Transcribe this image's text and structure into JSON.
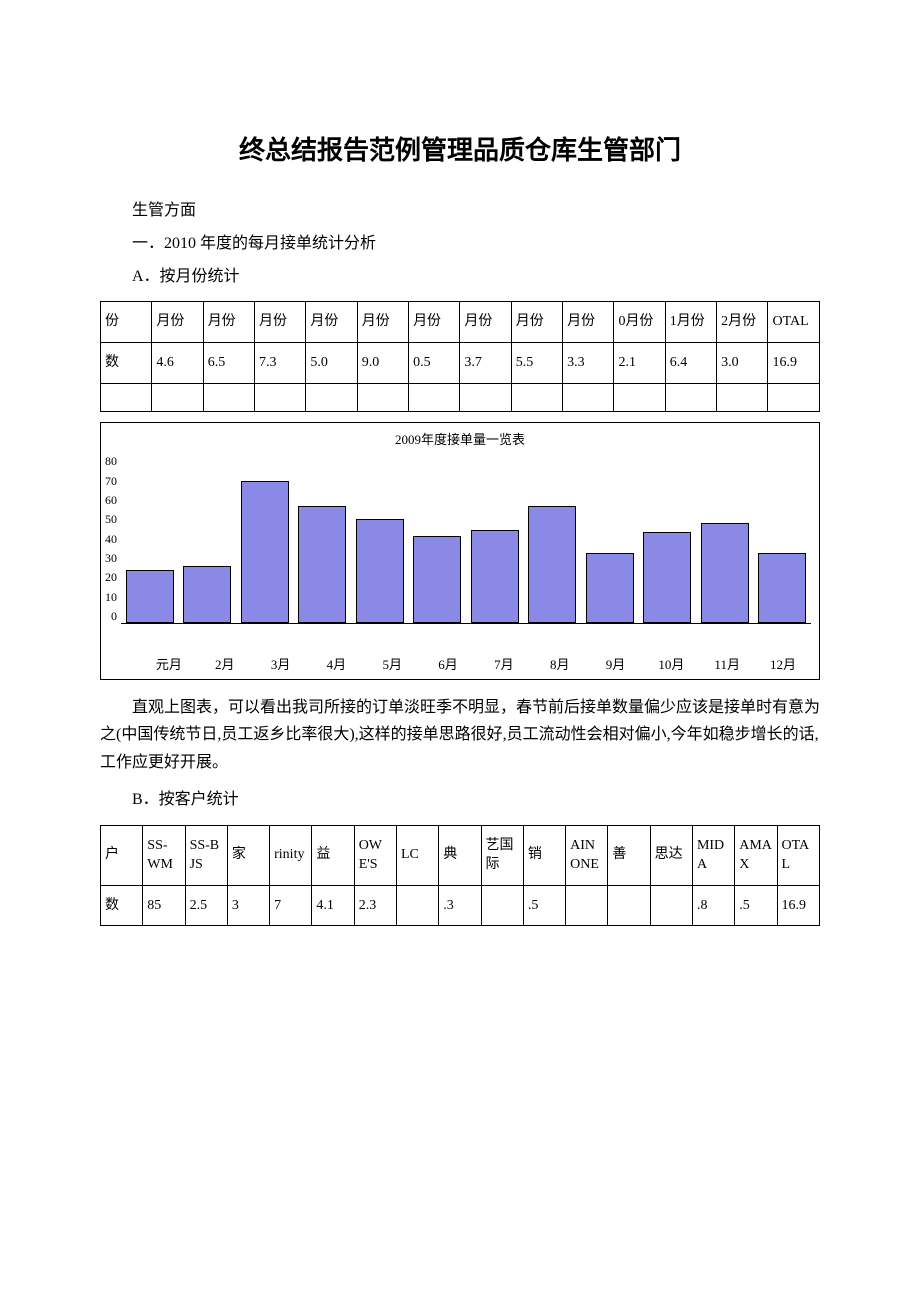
{
  "title": "终总结报告范例管理品质仓库生管部门",
  "section1_heading": "生管方面",
  "section1_sub1": "一．2010 年度的每月接单统计分析",
  "section1_sub1a": "A．按月份统计",
  "table_month": {
    "headers": [
      "份",
      "月份",
      "月份",
      "月份",
      "月份",
      "月份",
      "月份",
      "月份",
      "月份",
      "月份",
      "0月份",
      "1月份",
      "2月份",
      "OTAL"
    ],
    "row_label": "数",
    "values": [
      "4.6",
      "6.5",
      "7.3",
      "5.0",
      "9.0",
      "0.5",
      "3.7",
      "5.5",
      "3.3",
      "2.1",
      "6.4",
      "3.0",
      "16.9"
    ]
  },
  "chart": {
    "title": "2009年度接单量一览表",
    "bar_color": "#8a8ae6",
    "border_color": "#000000",
    "y_ticks": [
      0,
      10,
      20,
      30,
      40,
      50,
      60,
      70,
      80
    ],
    "y_max": 80,
    "categories": [
      "元月",
      "2月",
      "3月",
      "4月",
      "5月",
      "6月",
      "7月",
      "8月",
      "9月",
      "10月",
      "11月",
      "12月"
    ],
    "values": [
      25,
      27,
      67,
      55,
      49,
      41,
      44,
      55,
      33,
      43,
      47,
      33
    ]
  },
  "body_para": "直观上图表，可以看出我司所接的订单淡旺季不明显，春节前后接单数量偏少应该是接单时有意为之(中国传统节日,员工返乡比率很大),这样的接单思路很好,员工流动性会相对偏小,今年如稳步增长的话,工作应更好开展。",
  "section1_sub1b": "B．按客户统计",
  "table_customer": {
    "headers": [
      "户",
      "SS-WM",
      "SS-BJS",
      "家",
      "rinity",
      "益",
      "OWE'S",
      "LC",
      "典",
      "艺国际",
      "销",
      "AINONE",
      "善",
      "思达",
      "MIDA",
      "AMAX",
      "OTAL"
    ],
    "row_label": "数",
    "values": [
      "85",
      "2.5",
      "3",
      "7",
      "4.1",
      "2.3",
      "",
      ".3",
      "",
      ".5",
      "",
      "",
      "",
      ".8",
      ".5",
      "16.9"
    ]
  }
}
